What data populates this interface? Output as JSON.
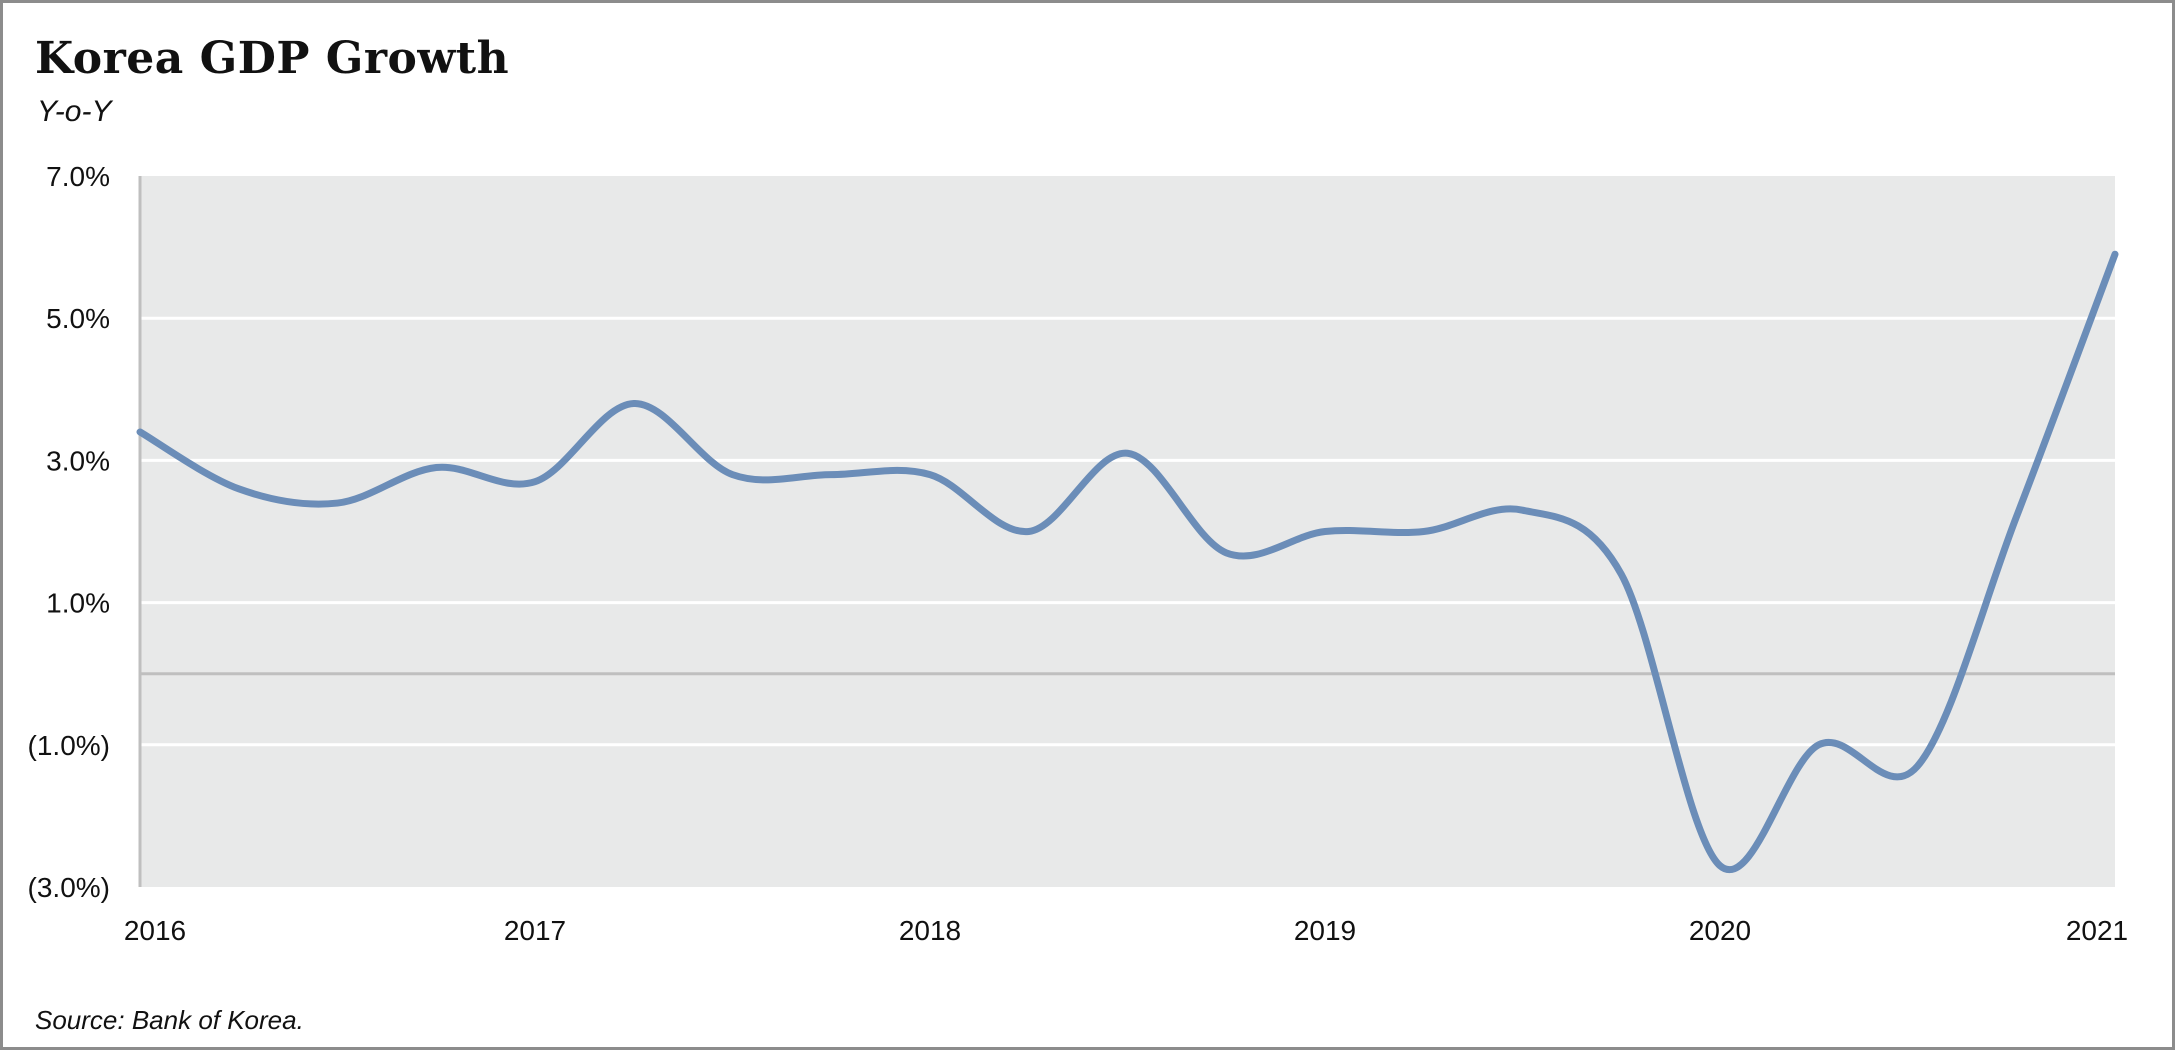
{
  "header": {
    "title": "Korea GDP Growth",
    "subtitle": "Y-o-Y"
  },
  "footer": {
    "source": "Source: Bank of Korea."
  },
  "colors": {
    "line": "#6b8db8",
    "plot_background": "#e8e9e9",
    "gridline": "#ffffff",
    "zero_line": "#bfbfbf",
    "axis": "#bfbfbf"
  },
  "chart_data": {
    "type": "line",
    "title": "Korea GDP Growth",
    "subtitle": "Y-o-Y",
    "xlabel": "",
    "ylabel": "",
    "xlim": [
      2016.0,
      2021.0
    ],
    "ylim": [
      -3.0,
      7.0
    ],
    "x_ticks": [
      2016,
      2017,
      2018,
      2019,
      2020,
      2021
    ],
    "x_tick_labels": [
      "2016",
      "2017",
      "2018",
      "2019",
      "2020",
      "2021"
    ],
    "y_ticks": [
      7.0,
      5.0,
      3.0,
      1.0,
      -1.0,
      -3.0
    ],
    "y_tick_labels": [
      "7.0%",
      "5.0%",
      "3.0%",
      "1.0%",
      "(1.0%)",
      "(3.0%)"
    ],
    "grid": "horizontal",
    "legend": "none",
    "series": [
      {
        "x": [
          2016.0,
          2016.25,
          2016.5,
          2016.75,
          2017.0,
          2017.25,
          2017.5,
          2017.75,
          2018.0,
          2018.25,
          2018.5,
          2018.75,
          2019.0,
          2019.25,
          2019.5,
          2019.75,
          2020.0,
          2020.25,
          2020.5,
          2020.75,
          2021.0
        ],
        "values": [
          3.4,
          2.6,
          2.4,
          2.9,
          2.7,
          3.8,
          2.8,
          2.8,
          2.8,
          2.0,
          3.1,
          1.7,
          2.0,
          2.0,
          2.3,
          1.4,
          -2.7,
          -1.0,
          -1.3,
          2.2,
          5.9
        ]
      }
    ]
  }
}
